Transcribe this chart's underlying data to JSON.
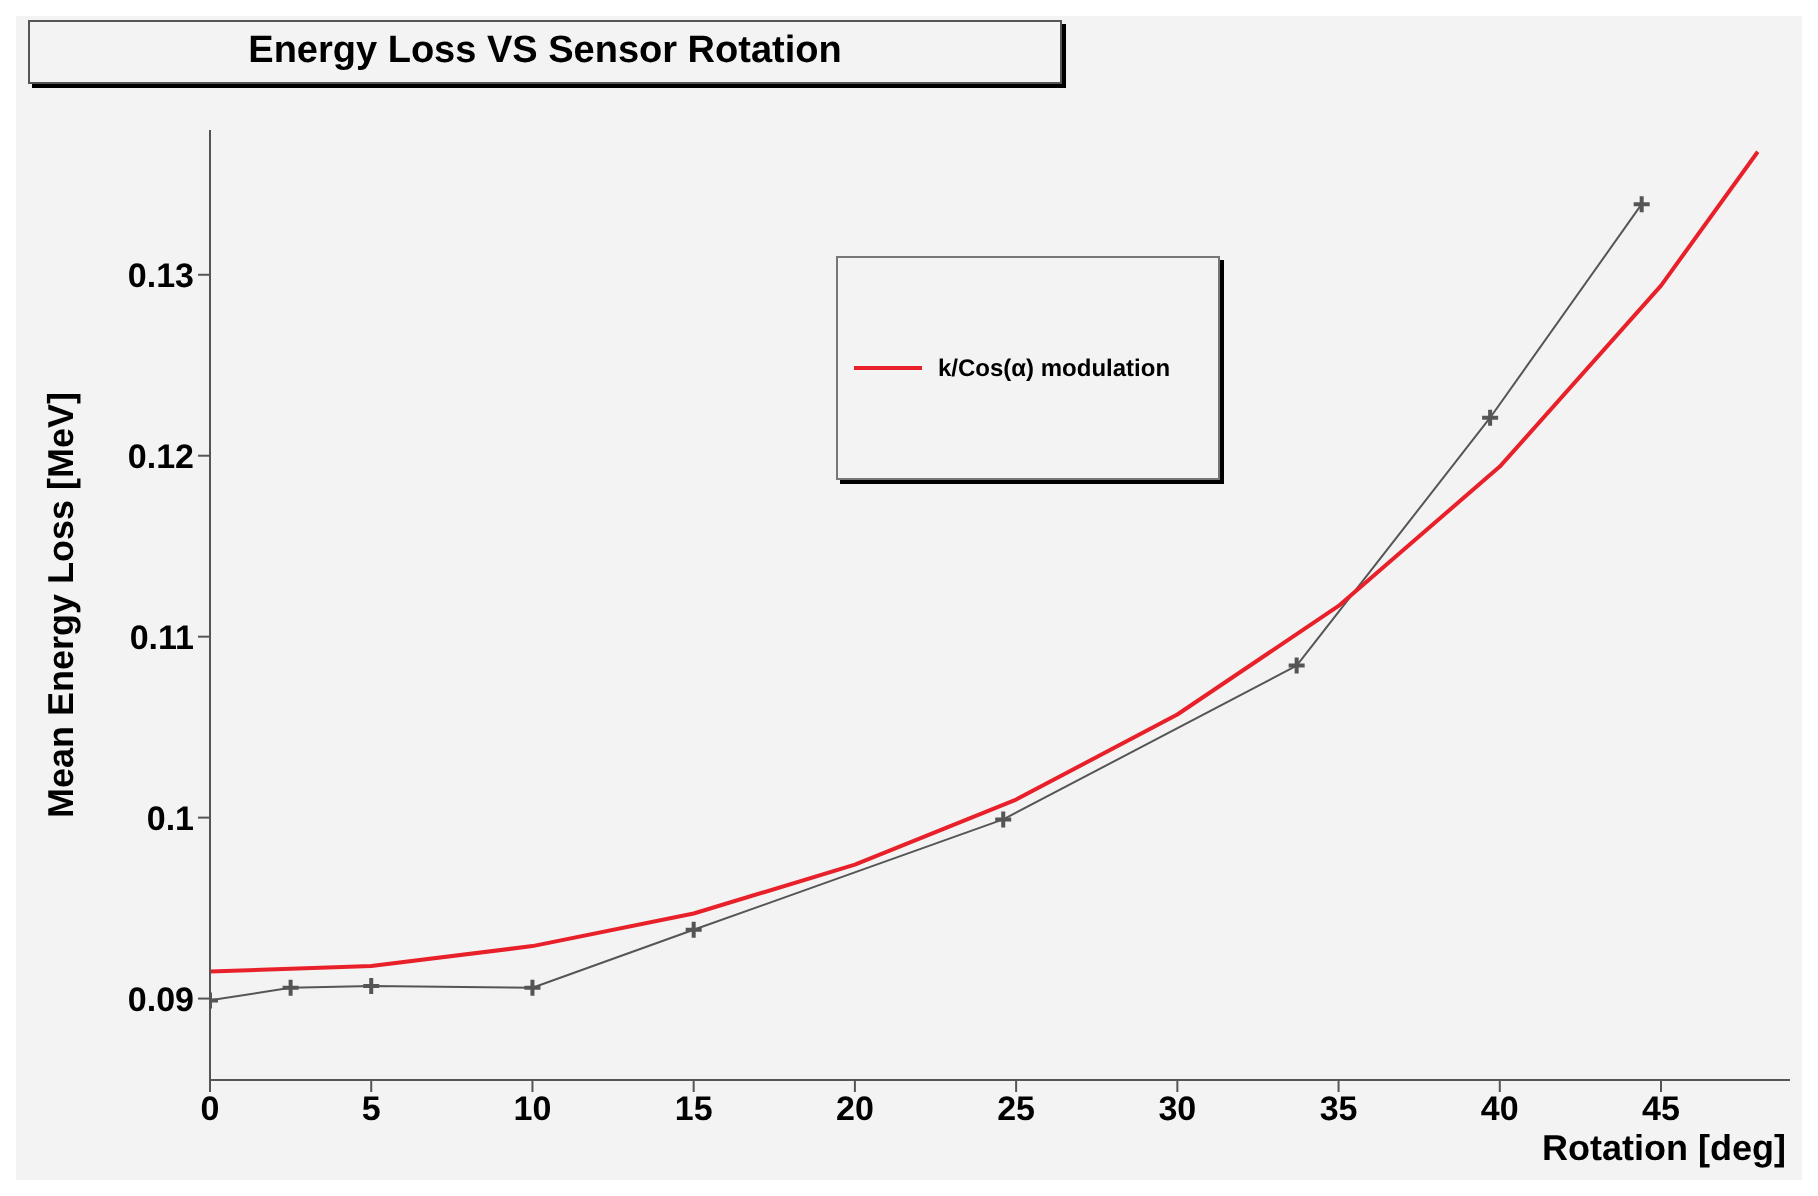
{
  "chart_data": {
    "type": "line",
    "title": "Energy Loss VS Sensor Rotation",
    "xlabel": "Rotation [deg]",
    "ylabel": "Mean Energy Loss [MeV]",
    "xlim": [
      0,
      49
    ],
    "xticks": [
      0,
      5,
      10,
      15,
      20,
      25,
      30,
      35,
      40,
      45
    ],
    "ylim": [
      0.0855,
      0.138
    ],
    "yticks": [
      0.09,
      {
        "value": 0.1,
        "label": "0.1"
      },
      0.11,
      0.12,
      0.13
    ],
    "grid": false,
    "legend": "top",
    "series": [
      {
        "color": "#555555",
        "marker": "cross",
        "x": [
          0,
          2.5,
          5,
          10,
          15,
          24.6,
          33.7,
          39.7,
          44.4
        ],
        "values": [
          0.0899,
          0.0906,
          0.0907,
          0.0906,
          0.0938,
          0.0999,
          0.1084,
          0.1221,
          0.1339
        ]
      },
      {
        "name": "k/Cos(α) modulation",
        "color": "#e8202a",
        "marker": "none",
        "x": [
          0,
          5,
          10,
          15,
          20,
          25,
          30,
          35,
          40,
          45,
          48
        ],
        "values": [
          0.0915,
          0.0918,
          0.0929,
          0.0947,
          0.0974,
          0.101,
          0.1057,
          0.1117,
          0.1194,
          0.1294,
          0.1368
        ]
      }
    ]
  }
}
